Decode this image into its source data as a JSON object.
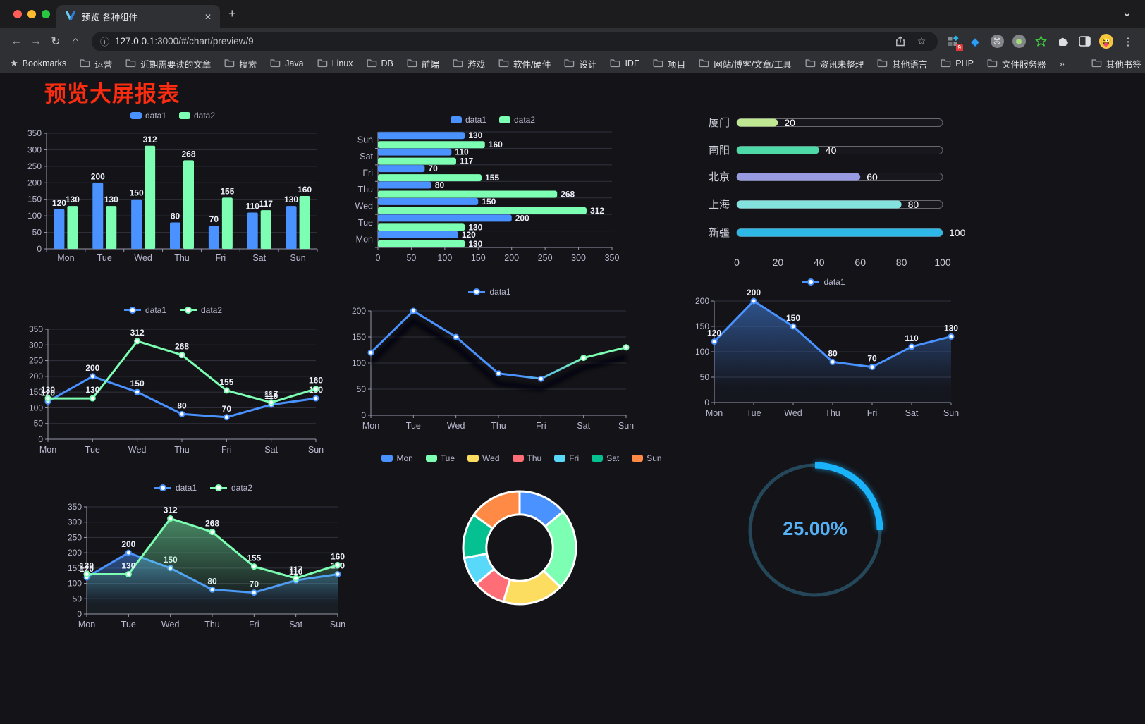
{
  "browser": {
    "tab_title": "预览-各种组件",
    "url_host": "127.0.0.1",
    "url_rest": ":3000/#/chart/preview/9",
    "extension_badge": "9",
    "bookmarks_label": "Bookmarks",
    "bookmark_folders": [
      "运营",
      "近期需要读的文章",
      "搜索",
      "Java",
      "Linux",
      "DB",
      "前端",
      "游戏",
      "软件/硬件",
      "设计",
      "IDE",
      "项目",
      "网站/博客/文章/工具",
      "资讯未整理",
      "其他语言",
      "PHP",
      "文件服务器"
    ],
    "other_bookmarks_label": "其他书签",
    "icons": {
      "close": "✕",
      "new_tab": "+",
      "chevron_down": "⌄",
      "back": "←",
      "forward": "→",
      "reload": "↻",
      "home": "⌂",
      "info": "ⓘ",
      "star_outline": "☆",
      "bookmarks_star": "★",
      "overflow": "»",
      "gem": "◆",
      "command": "⌘",
      "menu": "⋮",
      "avatar_emoji": "😜"
    }
  },
  "page": {
    "title": "预览大屏报表"
  },
  "chart_data": [
    {
      "id": "bar-grouped",
      "type": "bar",
      "categories": [
        "Mon",
        "Tue",
        "Wed",
        "Thu",
        "Fri",
        "Sat",
        "Sun"
      ],
      "series": [
        {
          "name": "data1",
          "color": "#4992ff",
          "values": [
            120,
            200,
            150,
            80,
            70,
            110,
            130
          ]
        },
        {
          "name": "data2",
          "color": "#7cffb2",
          "values": [
            130,
            130,
            312,
            268,
            155,
            117,
            160
          ]
        }
      ],
      "ylim": [
        0,
        350
      ],
      "ytick_step": 50,
      "show_labels": true,
      "grid": true,
      "legend_position": "top"
    },
    {
      "id": "hbar-grouped",
      "type": "bar-horizontal",
      "categories_top_to_bottom": [
        "Sun",
        "Sat",
        "Fri",
        "Thu",
        "Wed",
        "Tue",
        "Mon"
      ],
      "series": [
        {
          "name": "data1",
          "color": "#4992ff",
          "values_top_to_bottom": [
            130,
            110,
            70,
            80,
            150,
            200,
            120
          ]
        },
        {
          "name": "data2",
          "color": "#7cffb2",
          "values_top_to_bottom": [
            160,
            117,
            155,
            268,
            312,
            130,
            130
          ]
        }
      ],
      "xlim": [
        0,
        350
      ],
      "xtick_step": 50,
      "show_labels": true,
      "grid": true,
      "legend_position": "top"
    },
    {
      "id": "progress-bars",
      "type": "bar-horizontal",
      "items": [
        {
          "label": "厦门",
          "value": 20,
          "color": "#c0e792"
        },
        {
          "label": "南阳",
          "value": 40,
          "color": "#4ed9a9"
        },
        {
          "label": "北京",
          "value": 60,
          "color": "#989ae2"
        },
        {
          "label": "上海",
          "value": 80,
          "color": "#83e1de"
        },
        {
          "label": "新疆",
          "value": 100,
          "color": "#2db8e8"
        }
      ],
      "xlim": [
        0,
        100
      ],
      "xticks": [
        0,
        20,
        40,
        60,
        80,
        100
      ],
      "track_outline": "#68686f"
    },
    {
      "id": "line-two",
      "type": "line",
      "categories": [
        "Mon",
        "Tue",
        "Wed",
        "Thu",
        "Fri",
        "Sat",
        "Sun"
      ],
      "series": [
        {
          "name": "data1",
          "color": "#4992ff",
          "values": [
            120,
            200,
            150,
            80,
            70,
            110,
            130
          ]
        },
        {
          "name": "data2",
          "color": "#7cffb2",
          "values": [
            130,
            130,
            312,
            268,
            155,
            117,
            160
          ]
        }
      ],
      "ylim": [
        0,
        350
      ],
      "ytick_step": 50,
      "show_labels": true,
      "grid": true,
      "legend_position": "top"
    },
    {
      "id": "line-gradient",
      "type": "line",
      "categories": [
        "Mon",
        "Tue",
        "Wed",
        "Thu",
        "Fri",
        "Sat",
        "Sun"
      ],
      "series": [
        {
          "name": "data1",
          "gradient": [
            "#4992ff",
            "#7cffb2"
          ],
          "values": [
            120,
            200,
            150,
            80,
            70,
            110,
            130
          ]
        }
      ],
      "ylim": [
        0,
        200
      ],
      "ytick_step": 50,
      "show_labels": false,
      "shadow": true,
      "grid": true,
      "legend_position": "top"
    },
    {
      "id": "area-single",
      "type": "area",
      "categories": [
        "Mon",
        "Tue",
        "Wed",
        "Thu",
        "Fri",
        "Sat",
        "Sun"
      ],
      "series": [
        {
          "name": "data1",
          "color": "#4992ff",
          "area": true,
          "values": [
            120,
            200,
            150,
            80,
            70,
            110,
            130
          ]
        }
      ],
      "ylim": [
        0,
        200
      ],
      "ytick_step": 50,
      "show_labels": true,
      "grid": true,
      "legend_position": "top"
    },
    {
      "id": "area-two",
      "type": "area",
      "categories": [
        "Mon",
        "Tue",
        "Wed",
        "Thu",
        "Fri",
        "Sat",
        "Sun"
      ],
      "series": [
        {
          "name": "data1",
          "color": "#4992ff",
          "area": true,
          "values": [
            120,
            200,
            150,
            80,
            70,
            110,
            130
          ]
        },
        {
          "name": "data2",
          "color": "#7cffb2",
          "area": true,
          "values": [
            130,
            130,
            312,
            268,
            155,
            117,
            160
          ]
        }
      ],
      "ylim": [
        0,
        350
      ],
      "ytick_step": 50,
      "show_labels": true,
      "grid": true,
      "legend_position": "top"
    },
    {
      "id": "donut",
      "type": "pie",
      "categories": [
        "Mon",
        "Tue",
        "Wed",
        "Thu",
        "Fri",
        "Sat",
        "Sun"
      ],
      "values": [
        120,
        200,
        150,
        80,
        70,
        110,
        130
      ],
      "colors": [
        "#4992ff",
        "#7cffb2",
        "#fddd60",
        "#ff6e76",
        "#58d9f9",
        "#05c091",
        "#ff8a45"
      ],
      "inner_radius_ratio": 0.59,
      "border_color": "#ffffff",
      "legend_position": "top"
    },
    {
      "id": "gauge",
      "type": "gauge",
      "value": 25,
      "max": 100,
      "label": "25.00%",
      "color": "#1ab2f8",
      "track_color": "#24485a",
      "label_color": "#55b1f6"
    }
  ]
}
